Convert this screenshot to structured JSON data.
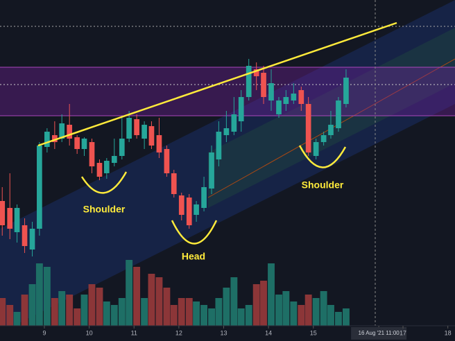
{
  "chart_data": {
    "type": "candlestick",
    "up_color": "#26a69a",
    "down_color": "#ef5350",
    "volume_up_color": "#1e6f66",
    "volume_down_color": "#8c3638",
    "x": [
      8.06,
      8.23,
      8.39,
      8.56,
      8.73,
      8.89,
      9.06,
      9.23,
      9.39,
      9.56,
      9.73,
      9.89,
      10.06,
      10.23,
      10.39,
      10.56,
      10.73,
      10.89,
      11.06,
      11.23,
      11.39,
      11.56,
      11.73,
      11.89,
      12.06,
      12.23,
      12.39,
      12.56,
      12.73,
      12.89,
      13.06,
      13.23,
      13.39,
      13.56,
      13.73,
      13.89,
      14.06,
      14.23,
      14.39,
      14.56,
      14.73,
      14.89,
      15.06,
      15.23,
      15.39,
      15.56,
      15.73
    ],
    "open": [
      180,
      170,
      135,
      145,
      110,
      140,
      258,
      275,
      270,
      290,
      272,
      255,
      265,
      235,
      220,
      235,
      245,
      270,
      298,
      270,
      288,
      275,
      255,
      220,
      188,
      185,
      160,
      170,
      198,
      240,
      275,
      280,
      295,
      330,
      370,
      365,
      325,
      305,
      320,
      325,
      340,
      320,
      245,
      265,
      275,
      285,
      320
    ],
    "high": [
      200,
      220,
      175,
      155,
      150,
      265,
      285,
      295,
      305,
      320,
      275,
      272,
      270,
      240,
      242,
      270,
      300,
      310,
      305,
      295,
      295,
      300,
      260,
      225,
      192,
      190,
      180,
      215,
      260,
      295,
      310,
      330,
      340,
      385,
      380,
      375,
      370,
      330,
      340,
      350,
      345,
      330,
      270,
      280,
      310,
      330,
      370
    ],
    "low": [
      130,
      125,
      120,
      105,
      100,
      130,
      250,
      255,
      265,
      260,
      248,
      245,
      220,
      210,
      212,
      230,
      240,
      265,
      270,
      255,
      255,
      242,
      215,
      185,
      152,
      140,
      150,
      165,
      190,
      230,
      265,
      275,
      280,
      325,
      340,
      320,
      310,
      300,
      310,
      320,
      310,
      245,
      240,
      260,
      270,
      280,
      315
    ],
    "close": [
      145,
      140,
      170,
      115,
      140,
      260,
      280,
      265,
      292,
      270,
      255,
      270,
      230,
      215,
      238,
      245,
      270,
      300,
      275,
      290,
      260,
      250,
      220,
      190,
      160,
      145,
      175,
      200,
      250,
      280,
      285,
      305,
      330,
      375,
      360,
      330,
      350,
      325,
      330,
      335,
      320,
      250,
      265,
      275,
      290,
      325,
      358
    ],
    "volume": [
      40,
      30,
      20,
      45,
      60,
      90,
      85,
      40,
      50,
      45,
      25,
      45,
      60,
      55,
      35,
      30,
      40,
      95,
      85,
      40,
      75,
      70,
      55,
      30,
      40,
      40,
      35,
      30,
      25,
      40,
      55,
      70,
      25,
      30,
      60,
      65,
      90,
      45,
      50,
      35,
      30,
      45,
      40,
      50,
      30,
      20,
      25
    ],
    "xlim": [
      8.01,
      18.16
    ],
    "ylim": [
      0,
      470
    ],
    "volume_ylim": [
      0,
      130
    ],
    "xticks": [
      9,
      10,
      11,
      12,
      13,
      14,
      15,
      {
        "value": 16.46,
        "label": "16 Aug '21  11:00"
      },
      17,
      18
    ],
    "annotations": [
      "Shoulder",
      "Head",
      "Shoulder"
    ]
  }
}
